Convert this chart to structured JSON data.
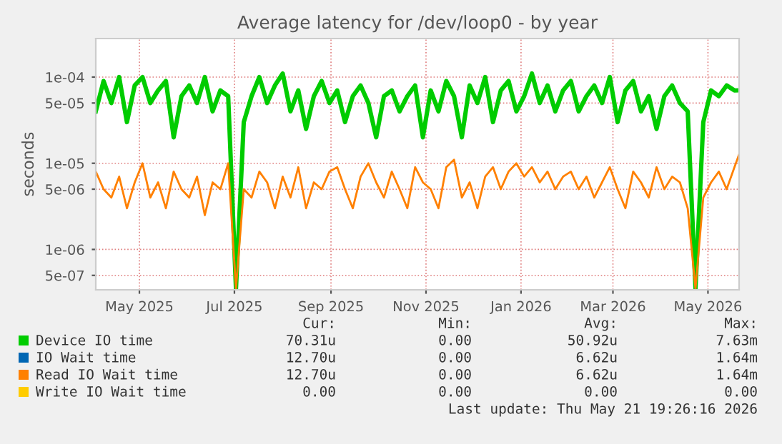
{
  "chart_data": {
    "type": "line",
    "title": "Average latency for /dev/loop0 - by year",
    "ylabel": "seconds",
    "log": "y",
    "grid": true,
    "legend": "bottom",
    "line_style": "solid",
    "marker": "none",
    "x": [
      "2025-04-03",
      "2025-04-08",
      "2025-04-13",
      "2025-04-18",
      "2025-04-23",
      "2025-04-28",
      "2025-05-03",
      "2025-05-08",
      "2025-05-13",
      "2025-05-18",
      "2025-05-23",
      "2025-05-28",
      "2025-06-02",
      "2025-06-07",
      "2025-06-12",
      "2025-06-17",
      "2025-06-22",
      "2025-06-27",
      "2025-07-02",
      "2025-07-07",
      "2025-07-12",
      "2025-07-17",
      "2025-07-22",
      "2025-07-27",
      "2025-08-01",
      "2025-08-06",
      "2025-08-11",
      "2025-08-16",
      "2025-08-21",
      "2025-08-26",
      "2025-08-31",
      "2025-09-05",
      "2025-09-10",
      "2025-09-15",
      "2025-09-20",
      "2025-09-25",
      "2025-09-30",
      "2025-10-05",
      "2025-10-10",
      "2025-10-15",
      "2025-10-20",
      "2025-10-25",
      "2025-10-30",
      "2025-11-04",
      "2025-11-09",
      "2025-11-14",
      "2025-11-19",
      "2025-11-24",
      "2025-11-29",
      "2025-12-04",
      "2025-12-09",
      "2025-12-14",
      "2025-12-19",
      "2025-12-24",
      "2025-12-29",
      "2026-01-03",
      "2026-01-08",
      "2026-01-13",
      "2026-01-18",
      "2026-01-23",
      "2026-01-28",
      "2026-02-02",
      "2026-02-07",
      "2026-02-12",
      "2026-02-17",
      "2026-02-22",
      "2026-02-27",
      "2026-03-04",
      "2026-03-09",
      "2026-03-14",
      "2026-03-19",
      "2026-03-24",
      "2026-03-29",
      "2026-04-03",
      "2026-04-08",
      "2026-04-13",
      "2026-04-18",
      "2026-04-23",
      "2026-04-28",
      "2026-05-03",
      "2026-05-08",
      "2026-05-13",
      "2026-05-18",
      "2026-05-21"
    ],
    "series": [
      {
        "name": "Device IO time",
        "color": "#00cc00",
        "values": [
          4e-05,
          9e-05,
          5e-05,
          0.0001,
          3e-05,
          8e-05,
          0.0001,
          5e-05,
          7e-05,
          9e-05,
          2e-05,
          6e-05,
          8e-05,
          5e-05,
          0.0001,
          4e-05,
          7e-05,
          6e-05,
          3.5e-07,
          3e-05,
          6e-05,
          0.0001,
          5e-05,
          8e-05,
          0.00011,
          4e-05,
          7e-05,
          2.5e-05,
          6e-05,
          9e-05,
          5e-05,
          7e-05,
          3e-05,
          6e-05,
          8e-05,
          5e-05,
          2e-05,
          6e-05,
          7e-05,
          4e-05,
          6e-05,
          8e-05,
          2e-05,
          7e-05,
          4e-05,
          9e-05,
          6e-05,
          2e-05,
          8e-05,
          5e-05,
          0.0001,
          3e-05,
          7e-05,
          9e-05,
          4e-05,
          6e-05,
          0.00011,
          5e-05,
          8e-05,
          4e-05,
          7e-05,
          9e-05,
          4e-05,
          6e-05,
          8e-05,
          5e-05,
          0.0001,
          3e-05,
          7e-05,
          9e-05,
          4e-05,
          6e-05,
          2.5e-05,
          6e-05,
          8e-05,
          5e-05,
          4e-05,
          3.5e-07,
          3e-05,
          7e-05,
          6e-05,
          8e-05,
          7e-05,
          7.031e-05
        ]
      },
      {
        "name": "IO Wait time",
        "color": "#0066b3",
        "values": [
          null,
          null,
          null,
          null,
          null,
          null,
          null,
          null,
          null,
          null,
          null,
          null,
          null,
          null,
          null,
          null,
          null,
          null,
          null,
          null,
          null,
          null,
          null,
          null,
          null,
          null,
          null,
          null,
          null,
          null,
          null,
          null,
          null,
          null,
          null,
          null,
          null,
          null,
          null,
          null,
          null,
          null,
          null,
          null,
          null,
          null,
          null,
          null,
          null,
          null,
          null,
          null,
          null,
          null,
          null,
          null,
          null,
          null,
          null,
          null,
          null,
          null,
          null,
          null,
          null,
          null,
          null,
          null,
          null,
          null,
          null,
          null,
          null,
          null,
          null,
          null,
          null,
          null,
          null,
          null,
          null,
          null,
          null,
          null
        ]
      },
      {
        "name": "Read IO Wait time",
        "color": "#ff8000",
        "values": [
          8e-06,
          5e-06,
          4e-06,
          7e-06,
          3e-06,
          6e-06,
          1e-05,
          4e-06,
          6e-06,
          3e-06,
          8e-06,
          5e-06,
          4e-06,
          7e-06,
          2.5e-06,
          6e-06,
          5e-06,
          1e-05,
          3.5e-07,
          5e-06,
          4e-06,
          8e-06,
          6e-06,
          3e-06,
          7e-06,
          4e-06,
          9e-06,
          3e-06,
          6e-06,
          5e-06,
          8e-06,
          9e-06,
          5e-06,
          3e-06,
          7e-06,
          1e-05,
          6e-06,
          4e-06,
          8e-06,
          5e-06,
          3e-06,
          9e-06,
          6e-06,
          5e-06,
          3e-06,
          9e-06,
          1.1e-05,
          4e-06,
          6e-06,
          3e-06,
          7e-06,
          9e-06,
          5e-06,
          8e-06,
          1e-05,
          7e-06,
          9e-06,
          6e-06,
          8e-06,
          5e-06,
          7e-06,
          8e-06,
          5e-06,
          7e-06,
          4e-06,
          6e-06,
          9e-06,
          5e-06,
          3e-06,
          8e-06,
          6e-06,
          4e-06,
          9e-06,
          5e-06,
          7e-06,
          6e-06,
          3e-06,
          3.5e-07,
          4e-06,
          6e-06,
          8e-06,
          5e-06,
          9e-06,
          1.27e-05
        ]
      },
      {
        "name": "Write IO Wait time",
        "color": "#ffcc00",
        "values": [
          null,
          null,
          null,
          null,
          null,
          null,
          null,
          null,
          null,
          null,
          null,
          null,
          null,
          null,
          null,
          null,
          null,
          null,
          null,
          null,
          null,
          null,
          null,
          null,
          null,
          null,
          null,
          null,
          null,
          null,
          null,
          null,
          null,
          null,
          null,
          null,
          null,
          null,
          null,
          null,
          null,
          null,
          null,
          null,
          null,
          null,
          null,
          null,
          null,
          null,
          null,
          null,
          null,
          null,
          null,
          null,
          null,
          null,
          null,
          null,
          null,
          null,
          null,
          null,
          null,
          null,
          null,
          null,
          null,
          null,
          null,
          null,
          null,
          null,
          null,
          null,
          null,
          null,
          null,
          null,
          null,
          null,
          null,
          null
        ]
      }
    ],
    "xlim": [
      "2025-04-03",
      "2026-05-21"
    ],
    "xticks": [
      {
        "value": "2025-05-01",
        "label": "May 2025"
      },
      {
        "value": "2025-07-01",
        "label": "Jul 2025"
      },
      {
        "value": "2025-09-01",
        "label": "Sep 2025"
      },
      {
        "value": "2025-11-01",
        "label": "Nov 2025"
      },
      {
        "value": "2026-01-01",
        "label": "Jan 2026"
      },
      {
        "value": "2026-03-01",
        "label": "Mar 2026"
      },
      {
        "value": "2026-05-01",
        "label": "May 2026"
      }
    ],
    "ylim": [
      3.4e-07,
      0.00028
    ],
    "yticks": [
      {
        "value": 0.0001,
        "label": "1e-04"
      },
      {
        "value": 5e-05,
        "label": "5e-05"
      },
      {
        "value": 1e-05,
        "label": "1e-05"
      },
      {
        "value": 5e-06,
        "label": "5e-06"
      },
      {
        "value": 1e-06,
        "label": "1e-06"
      },
      {
        "value": 5e-07,
        "label": "5e-07"
      }
    ],
    "annotations": [
      "Cur:",
      "Min:",
      "Avg:",
      "Max:",
      "70.31u",
      "0.00",
      "50.92u",
      "7.63m",
      "12.70u",
      "0.00",
      "6.62u",
      "1.64m",
      "12.70u",
      "0.00",
      "6.62u",
      "1.64m",
      "0.00",
      "0.00",
      "0.00",
      "0.00",
      "Last update: Thu May 21 19:26:16 2026"
    ]
  }
}
